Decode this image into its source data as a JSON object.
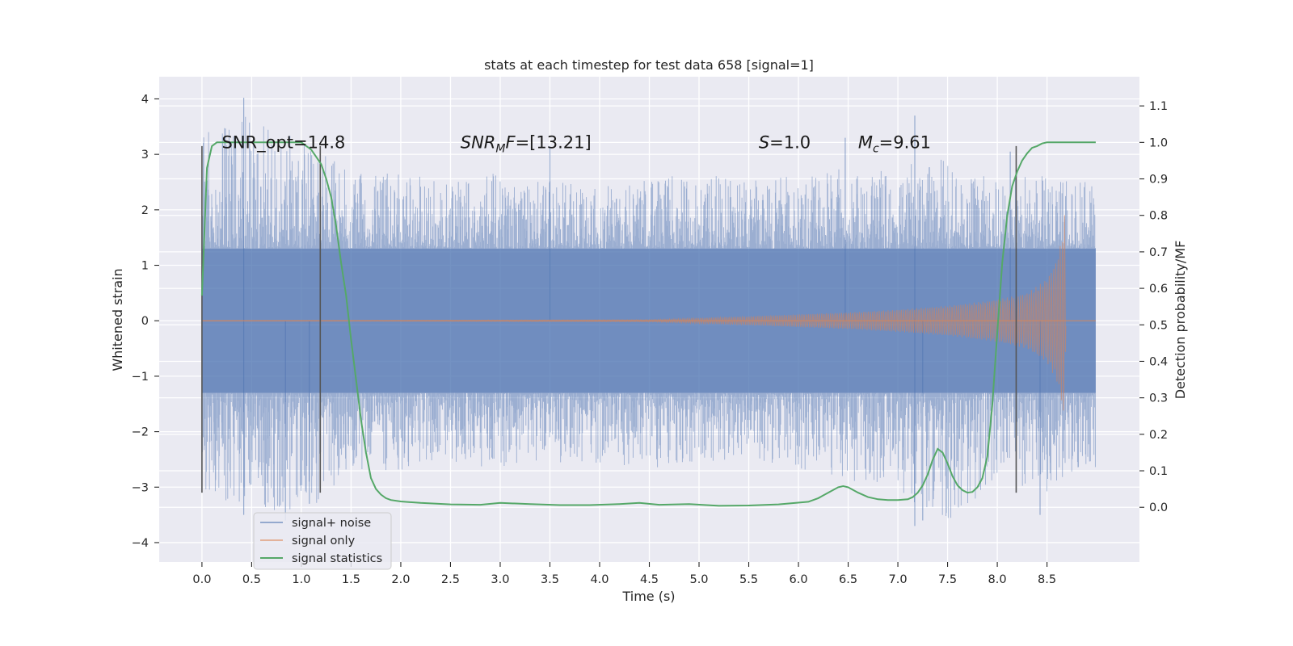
{
  "chart_data": {
    "type": "line",
    "title": "stats at each timestep for test data 658 [signal=1]",
    "xlabel": "Time (s)",
    "ylabel": "Whitened strain",
    "ylabel_right": "Detection probability/MF",
    "xlim": [
      -0.43,
      9.43
    ],
    "ylim": [
      -4.35,
      4.4
    ],
    "ylim_right": [
      -0.15,
      1.18
    ],
    "xticks": [
      "0.0",
      "0.5",
      "1.0",
      "1.5",
      "2.0",
      "2.5",
      "3.0",
      "3.5",
      "4.0",
      "4.5",
      "5.0",
      "5.5",
      "6.0",
      "6.5",
      "7.0",
      "7.5",
      "8.0",
      "8.5"
    ],
    "yticks": [
      "4",
      "3",
      "2",
      "1",
      "0",
      "−1",
      "−2",
      "−3",
      "−4"
    ],
    "yticks_right": [
      "1.1",
      "1.0",
      "0.9",
      "0.8",
      "0.7",
      "0.6",
      "0.5",
      "0.4",
      "0.3",
      "0.2",
      "0.1",
      "0.0"
    ],
    "grid": true,
    "legend_position": "lower-left",
    "colors": {
      "noise": "#4c72b0",
      "signal": "#dd8452",
      "stats": "#55a868",
      "vline": "#555555",
      "background": "#eaeaf2"
    },
    "annotations": [
      {
        "name": "snr-opt",
        "x": 0.2,
        "segments": [
          {
            "text": "SNR_opt=14.8"
          }
        ]
      },
      {
        "name": "snr-mf",
        "x": 2.6,
        "segments": [
          {
            "text": "SNR",
            "italic": true
          },
          {
            "text": "M",
            "italic": true,
            "sub": true
          },
          {
            "text": "F",
            "italic": true
          },
          {
            "text": "=[13.21]"
          }
        ]
      },
      {
        "name": "s-value",
        "x": 5.6,
        "segments": [
          {
            "text": "S",
            "italic": true
          },
          {
            "text": "=1.0"
          }
        ]
      },
      {
        "name": "chirp-mass",
        "x": 6.6,
        "segments": [
          {
            "text": "M",
            "italic": true
          },
          {
            "text": "c",
            "italic": true,
            "sub": true
          },
          {
            "text": "=9.61"
          }
        ]
      }
    ],
    "annotation_y": 3.2,
    "vertical_lines": [
      0.0,
      1.19,
      8.19
    ],
    "vertical_line_range": [
      -3.1,
      3.15
    ],
    "series": [
      {
        "name": "signal+ noise",
        "style": "dense noise band",
        "t_range": [
          0.0,
          8.99
        ],
        "core_band": [
          -1.3,
          1.3
        ],
        "envelope_times": [
          0.0,
          0.5,
          1.0,
          1.5,
          2.0,
          2.5,
          3.0,
          3.5,
          4.0,
          4.5,
          5.0,
          5.5,
          6.0,
          6.5,
          7.0,
          7.5,
          8.0,
          8.5,
          8.99
        ],
        "envelope_upper": [
          3.3,
          3.6,
          3.2,
          2.6,
          2.6,
          2.5,
          2.6,
          2.5,
          2.4,
          2.5,
          2.6,
          2.5,
          2.6,
          2.7,
          2.7,
          2.9,
          2.5,
          2.6,
          2.4
        ],
        "envelope_lower": [
          -3.0,
          -3.3,
          -3.5,
          -2.6,
          -2.7,
          -2.5,
          -2.6,
          -2.5,
          -2.5,
          -2.6,
          -2.5,
          -2.5,
          -2.6,
          -2.8,
          -3.0,
          -3.6,
          -2.8,
          -3.0,
          -2.6
        ],
        "spikes": [
          [
            0.42,
            4.02
          ],
          [
            0.42,
            -3.5
          ],
          [
            0.84,
            -3.6
          ],
          [
            1.08,
            -3.3
          ],
          [
            3.5,
            3.15
          ],
          [
            6.47,
            3.3
          ],
          [
            7.17,
            3.7
          ],
          [
            7.17,
            -3.7
          ],
          [
            7.25,
            -3.6
          ],
          [
            8.19,
            -3.1
          ],
          [
            8.43,
            -3.5
          ],
          [
            8.13,
            3.05
          ]
        ]
      },
      {
        "name": "signal only",
        "style": "chirp",
        "amp_times": [
          0.0,
          4.5,
          5.5,
          6.5,
          7.0,
          7.5,
          8.0,
          8.3,
          8.5,
          8.6,
          8.65,
          8.68,
          8.69,
          8.99
        ],
        "amp_values": [
          0.0,
          0.02,
          0.08,
          0.15,
          0.2,
          0.27,
          0.38,
          0.5,
          0.75,
          1.1,
          1.5,
          1.95,
          0.0,
          0.0
        ],
        "t_end": 8.69
      },
      {
        "name": "signal statistics",
        "style": "line",
        "axis": "right",
        "x": [
          0.0,
          0.05,
          0.1,
          0.15,
          0.2,
          0.3,
          0.5,
          0.7,
          0.9,
          1.0,
          1.05,
          1.1,
          1.15,
          1.2,
          1.25,
          1.3,
          1.35,
          1.4,
          1.45,
          1.5,
          1.55,
          1.6,
          1.65,
          1.7,
          1.75,
          1.8,
          1.85,
          1.9,
          2.0,
          2.2,
          2.5,
          2.8,
          3.0,
          3.3,
          3.6,
          3.9,
          4.2,
          4.4,
          4.6,
          4.9,
          5.2,
          5.5,
          5.8,
          6.1,
          6.2,
          6.3,
          6.4,
          6.45,
          6.5,
          6.6,
          6.7,
          6.8,
          6.9,
          7.0,
          7.1,
          7.15,
          7.2,
          7.25,
          7.3,
          7.35,
          7.4,
          7.45,
          7.5,
          7.55,
          7.6,
          7.65,
          7.7,
          7.75,
          7.8,
          7.85,
          7.9,
          7.95,
          8.0,
          8.05,
          8.1,
          8.15,
          8.2,
          8.25,
          8.3,
          8.35,
          8.4,
          8.45,
          8.5,
          8.6,
          8.7,
          8.8,
          8.9,
          8.99
        ],
        "y": [
          0.58,
          0.93,
          0.99,
          1.0,
          1.0,
          1.0,
          1.0,
          1.0,
          1.0,
          1.0,
          0.99,
          0.98,
          0.96,
          0.94,
          0.9,
          0.85,
          0.77,
          0.67,
          0.58,
          0.46,
          0.35,
          0.24,
          0.15,
          0.08,
          0.05,
          0.035,
          0.025,
          0.02,
          0.016,
          0.012,
          0.008,
          0.007,
          0.012,
          0.009,
          0.006,
          0.006,
          0.009,
          0.012,
          0.007,
          0.009,
          0.004,
          0.005,
          0.008,
          0.015,
          0.025,
          0.04,
          0.055,
          0.058,
          0.055,
          0.04,
          0.028,
          0.022,
          0.02,
          0.02,
          0.022,
          0.028,
          0.04,
          0.06,
          0.09,
          0.13,
          0.16,
          0.15,
          0.12,
          0.085,
          0.06,
          0.047,
          0.04,
          0.042,
          0.055,
          0.08,
          0.14,
          0.28,
          0.48,
          0.67,
          0.8,
          0.88,
          0.92,
          0.95,
          0.97,
          0.985,
          0.99,
          0.997,
          1.0,
          1.0,
          1.0,
          1.0,
          1.0,
          1.0
        ]
      }
    ]
  }
}
